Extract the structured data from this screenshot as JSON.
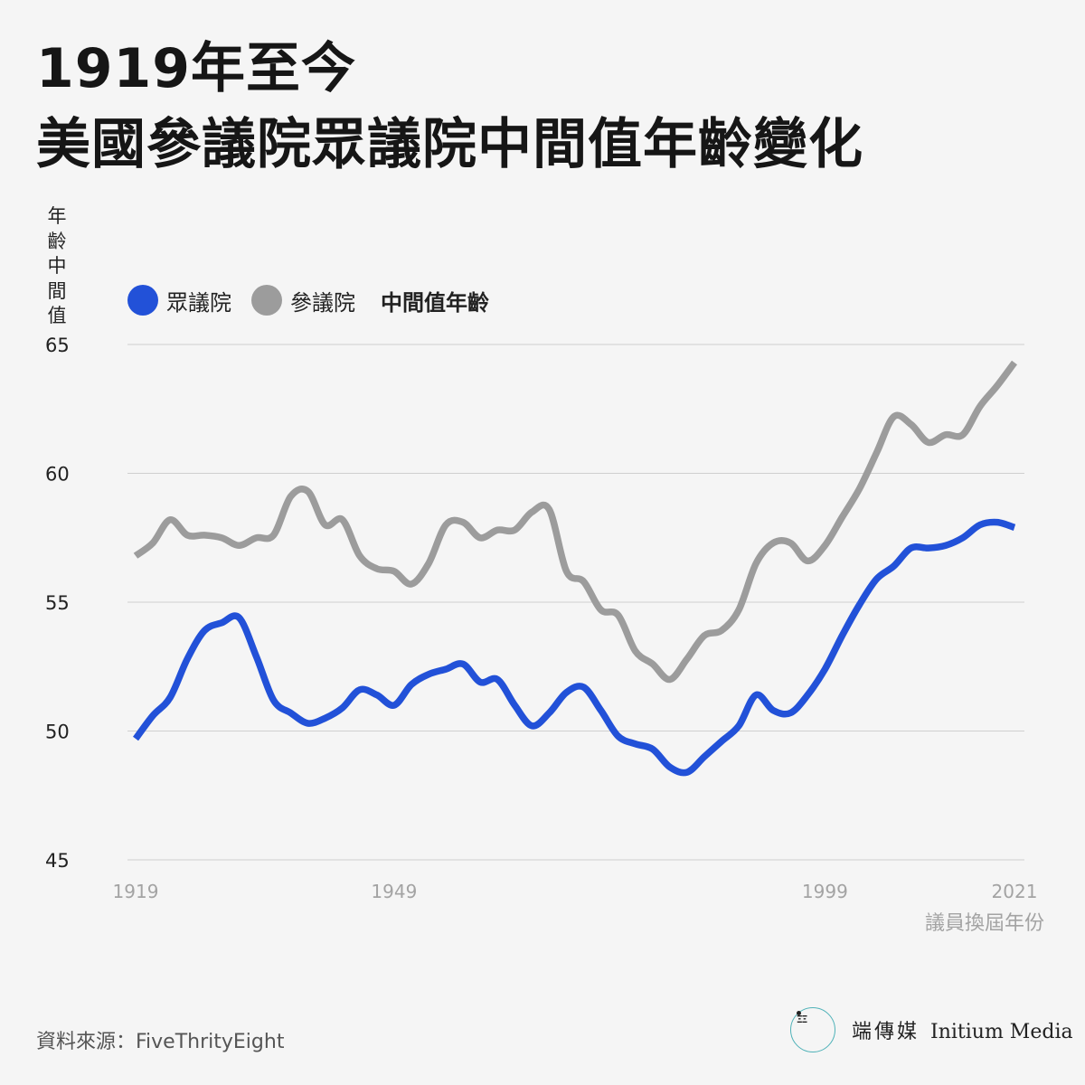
{
  "title": {
    "line1": "1919年至今",
    "line2": "美國參議院眾議院中間值年齡變化"
  },
  "legend": {
    "suffix": "中間值年齡"
  },
  "source": "資料來源：FiveThrityEight",
  "brand": {
    "logo_mark": "ΞΞ",
    "name_zh": "端傳媒",
    "name_en": "Initium Media"
  },
  "chart_data": {
    "type": "line",
    "ylabel": "年齡中間值",
    "xlabel": "議員換屆年份",
    "x_ticks": [
      1919,
      1949,
      1999,
      2021
    ],
    "y_ticks": [
      45,
      50,
      55,
      60,
      65
    ],
    "ylim": [
      45,
      65
    ],
    "xlim": [
      1919,
      2021
    ],
    "grid": true,
    "legend_position": "top-left",
    "series": [
      {
        "name": "眾議院",
        "color": "#2251d8",
        "x": [
          1919,
          1921,
          1923,
          1925,
          1927,
          1929,
          1931,
          1933,
          1935,
          1937,
          1939,
          1941,
          1943,
          1945,
          1947,
          1949,
          1951,
          1953,
          1955,
          1957,
          1959,
          1961,
          1963,
          1965,
          1967,
          1969,
          1971,
          1973,
          1975,
          1977,
          1979,
          1981,
          1983,
          1985,
          1987,
          1989,
          1991,
          1993,
          1995,
          1997,
          1999,
          2001,
          2003,
          2005,
          2007,
          2009,
          2011,
          2013,
          2015,
          2017,
          2019,
          2021
        ],
        "values": [
          49.7,
          50.6,
          51.3,
          52.8,
          53.9,
          54.2,
          54.4,
          52.9,
          51.2,
          50.7,
          50.3,
          50.5,
          50.9,
          51.6,
          51.4,
          51.0,
          51.8,
          52.2,
          52.4,
          52.6,
          51.9,
          52.0,
          51.0,
          50.2,
          50.7,
          51.5,
          51.7,
          50.8,
          49.8,
          49.5,
          49.3,
          48.6,
          48.4,
          49.0,
          49.6,
          50.2,
          51.4,
          50.8,
          50.7,
          51.4,
          52.4,
          53.7,
          54.9,
          55.9,
          56.4,
          57.1,
          57.1,
          57.2,
          57.5,
          58.0,
          58.1,
          57.9
        ]
      },
      {
        "name": "參議院",
        "color": "#9c9c9c",
        "x": [
          1919,
          1921,
          1923,
          1925,
          1927,
          1929,
          1931,
          1933,
          1935,
          1937,
          1939,
          1941,
          1943,
          1945,
          1947,
          1949,
          1951,
          1953,
          1955,
          1957,
          1959,
          1961,
          1963,
          1965,
          1967,
          1969,
          1971,
          1973,
          1975,
          1977,
          1979,
          1981,
          1983,
          1985,
          1987,
          1989,
          1991,
          1993,
          1995,
          1997,
          1999,
          2001,
          2003,
          2005,
          2007,
          2009,
          2011,
          2013,
          2015,
          2017,
          2019,
          2021
        ],
        "values": [
          56.8,
          57.3,
          58.2,
          57.6,
          57.6,
          57.5,
          57.2,
          57.5,
          57.6,
          59.1,
          59.3,
          58.0,
          58.2,
          56.8,
          56.3,
          56.2,
          55.7,
          56.5,
          58.0,
          58.1,
          57.5,
          57.8,
          57.8,
          58.5,
          58.6,
          56.2,
          55.8,
          54.7,
          54.5,
          53.1,
          52.6,
          52.0,
          52.8,
          53.7,
          53.9,
          54.7,
          56.5,
          57.3,
          57.3,
          56.6,
          57.2,
          58.3,
          59.4,
          60.8,
          62.2,
          61.9,
          61.2,
          61.5,
          61.5,
          62.6,
          63.4,
          64.3
        ]
      }
    ]
  }
}
